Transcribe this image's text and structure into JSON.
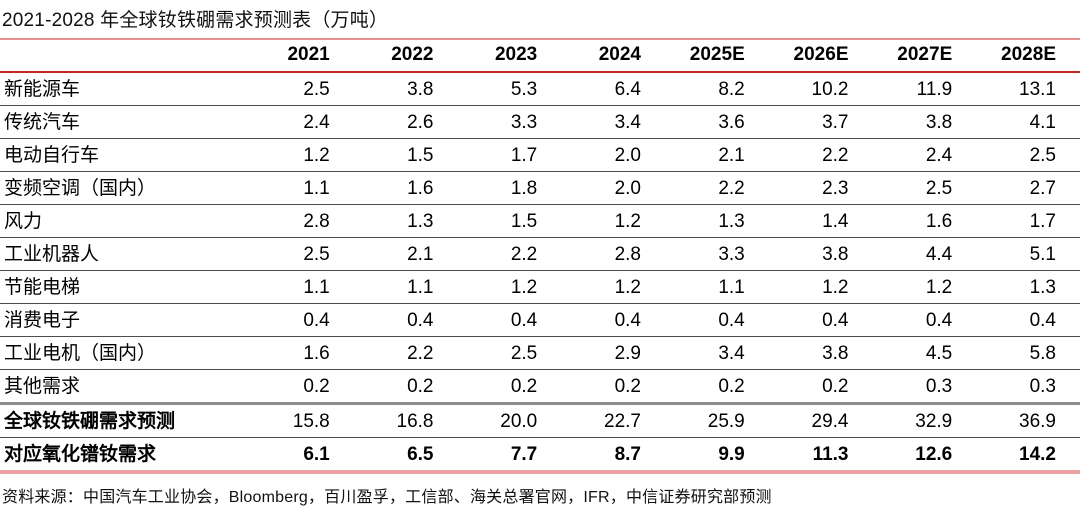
{
  "title": "2021-2028 年全球钕铁硼需求预测表（万吨）",
  "source": "资料来源：中国汽车工业协会，Bloomberg，百川盈孚，工信部、海关总署官网，IFR，中信证券研究部预测",
  "accent_colors": {
    "header_rule_red": "#c1271b",
    "title_rule_salmon": "#e39191",
    "bottom_rule_salmon": "#eda3a3",
    "row_separator_gray": "#4d4d4d",
    "section_separator_gray": "#8c8c8c"
  },
  "chart_data": {
    "type": "table",
    "title": "2021-2028 年全球钕铁硼需求预测表（万吨）",
    "unit": "万吨",
    "columns": [
      "2021",
      "2022",
      "2023",
      "2024",
      "2025E",
      "2026E",
      "2027E",
      "2028E"
    ],
    "rows": [
      {
        "label": "新能源车",
        "values": [
          "2.5",
          "3.8",
          "5.3",
          "6.4",
          "8.2",
          "10.2",
          "11.9",
          "13.1"
        ],
        "section": "body",
        "bold_label": false,
        "bold_values": false
      },
      {
        "label": "传统汽车",
        "values": [
          "2.4",
          "2.6",
          "3.3",
          "3.4",
          "3.6",
          "3.7",
          "3.8",
          "4.1"
        ],
        "section": "body",
        "bold_label": false,
        "bold_values": false
      },
      {
        "label": "电动自行车",
        "values": [
          "1.2",
          "1.5",
          "1.7",
          "2.0",
          "2.1",
          "2.2",
          "2.4",
          "2.5"
        ],
        "section": "body",
        "bold_label": false,
        "bold_values": false
      },
      {
        "label": "变频空调（国内）",
        "values": [
          "1.1",
          "1.6",
          "1.8",
          "2.0",
          "2.2",
          "2.3",
          "2.5",
          "2.7"
        ],
        "section": "body",
        "bold_label": false,
        "bold_values": false
      },
      {
        "label": "风力",
        "values": [
          "2.8",
          "1.3",
          "1.5",
          "1.2",
          "1.3",
          "1.4",
          "1.6",
          "1.7"
        ],
        "section": "body",
        "bold_label": false,
        "bold_values": false
      },
      {
        "label": "工业机器人",
        "values": [
          "2.5",
          "2.1",
          "2.2",
          "2.8",
          "3.3",
          "3.8",
          "4.4",
          "5.1"
        ],
        "section": "body",
        "bold_label": false,
        "bold_values": false
      },
      {
        "label": "节能电梯",
        "values": [
          "1.1",
          "1.1",
          "1.2",
          "1.2",
          "1.1",
          "1.2",
          "1.2",
          "1.3"
        ],
        "section": "body",
        "bold_label": false,
        "bold_values": false
      },
      {
        "label": "消费电子",
        "values": [
          "0.4",
          "0.4",
          "0.4",
          "0.4",
          "0.4",
          "0.4",
          "0.4",
          "0.4"
        ],
        "section": "body",
        "bold_label": false,
        "bold_values": false
      },
      {
        "label": "工业电机（国内）",
        "values": [
          "1.6",
          "2.2",
          "2.5",
          "2.9",
          "3.4",
          "3.8",
          "4.5",
          "5.8"
        ],
        "section": "body",
        "bold_label": false,
        "bold_values": false
      },
      {
        "label": "其他需求",
        "values": [
          "0.2",
          "0.2",
          "0.2",
          "0.2",
          "0.2",
          "0.2",
          "0.3",
          "0.3"
        ],
        "section": "body",
        "bold_label": false,
        "bold_values": false
      },
      {
        "label": "全球钕铁硼需求预测",
        "values": [
          "15.8",
          "16.8",
          "20.0",
          "22.7",
          "25.9",
          "29.4",
          "32.9",
          "36.9"
        ],
        "section": "total",
        "bold_label": true,
        "bold_values": false
      },
      {
        "label": "对应氧化镨钕需求",
        "values": [
          "6.1",
          "6.5",
          "7.7",
          "8.7",
          "9.9",
          "11.3",
          "12.6",
          "14.2"
        ],
        "section": "total",
        "bold_label": true,
        "bold_values": true
      }
    ]
  }
}
